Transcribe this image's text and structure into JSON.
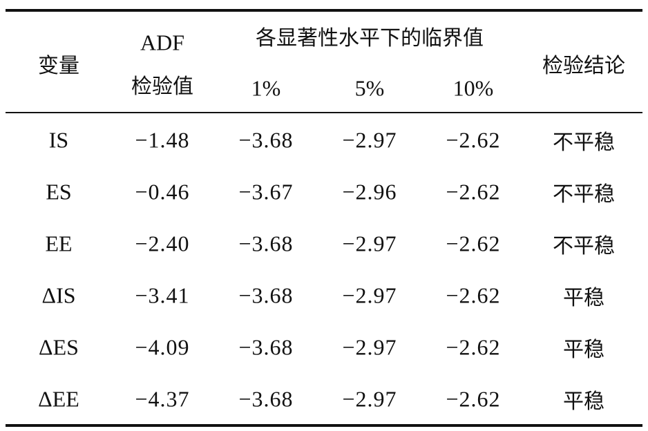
{
  "table": {
    "header": {
      "variable": "变量",
      "adf": [
        "ADF",
        "检验值"
      ],
      "critical": "各显著性水平下的临界值",
      "levels": [
        "1%",
        "5%",
        "10%"
      ],
      "conclusion": "检验结论"
    },
    "rows": [
      [
        "IS",
        "−1.48",
        "−3.68",
        "−2.97",
        "−2.62",
        "不平稳"
      ],
      [
        "ES",
        "−0.46",
        "−3.67",
        "−2.96",
        "−2.62",
        "不平稳"
      ],
      [
        "EE",
        "−2.40",
        "−3.68",
        "−2.97",
        "−2.62",
        "不平稳"
      ],
      [
        "ΔIS",
        "−3.41",
        "−3.68",
        "−2.97",
        "−2.62",
        "平稳"
      ],
      [
        "ΔES",
        "−4.09",
        "−3.68",
        "−2.97",
        "−2.62",
        "平稳"
      ],
      [
        "ΔEE",
        "−4.37",
        "−3.68",
        "−2.97",
        "−2.62",
        "平稳"
      ]
    ]
  }
}
